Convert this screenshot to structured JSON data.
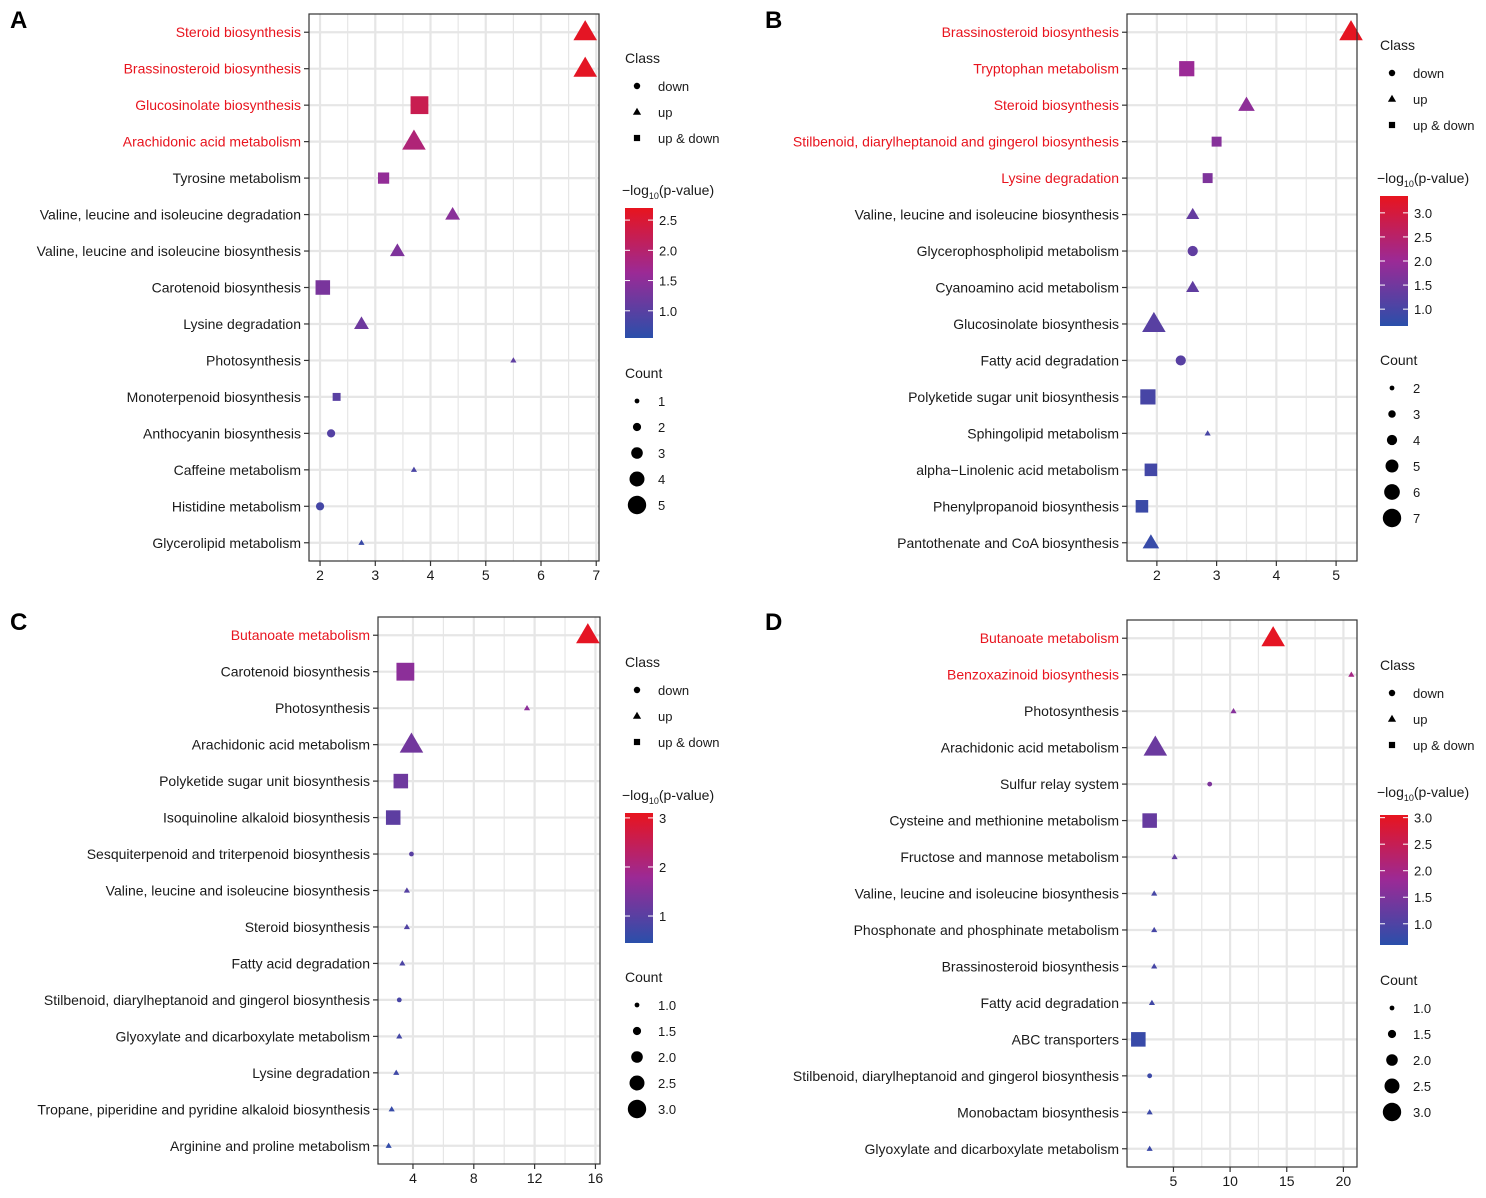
{
  "colors": {
    "low": "#2A4FAA",
    "mid": "#9B2A96",
    "high": "#E8141E",
    "highlight_label": "#E8141E",
    "grid": "#E6E6E6"
  },
  "legend": {
    "class_title": "Class",
    "class_items": [
      {
        "label": "down",
        "shape": "circle"
      },
      {
        "label": "up",
        "shape": "triangle"
      },
      {
        "label": "up & down",
        "shape": "square"
      }
    ],
    "color_title_prefix": "−log",
    "color_title_sub": "10",
    "color_title_suffix": "(p-value)",
    "count_title": "Count"
  },
  "chart_data": [
    {
      "panel": "A",
      "type": "scatter",
      "xlim": [
        1.8,
        7.05
      ],
      "xticks": [
        "2",
        "3",
        "4",
        "5",
        "6",
        "7"
      ],
      "color_range": [
        0.55,
        2.7
      ],
      "color_ticks": [
        "1.0",
        "1.5",
        "2.0",
        "2.5"
      ],
      "size_range": [
        1,
        5
      ],
      "count_ticks": [
        "1",
        "2",
        "3",
        "4",
        "5"
      ],
      "points": [
        {
          "pathway": "Steroid biosynthesis",
          "x": 6.8,
          "class": "up",
          "count": 5,
          "logp": 2.65,
          "highlight": true
        },
        {
          "pathway": "Brassinosteroid biosynthesis",
          "x": 6.8,
          "class": "up",
          "count": 5,
          "logp": 2.65,
          "highlight": true
        },
        {
          "pathway": "Glucosinolate biosynthesis",
          "x": 3.8,
          "class": "up & down",
          "count": 5,
          "logp": 2.25,
          "highlight": true
        },
        {
          "pathway": "Arachidonic acid metabolism",
          "x": 3.7,
          "class": "up",
          "count": 5,
          "logp": 1.9,
          "highlight": true
        },
        {
          "pathway": "Tyrosine metabolism",
          "x": 3.15,
          "class": "up & down",
          "count": 3,
          "logp": 1.55,
          "highlight": false
        },
        {
          "pathway": "Valine, leucine and isoleucine degradation",
          "x": 4.4,
          "class": "up",
          "count": 3,
          "logp": 1.45,
          "highlight": false
        },
        {
          "pathway": "Valine, leucine and isoleucine biosynthesis",
          "x": 3.4,
          "class": "up",
          "count": 3,
          "logp": 1.35,
          "highlight": false
        },
        {
          "pathway": "Carotenoid biosynthesis",
          "x": 2.05,
          "class": "up & down",
          "count": 4,
          "logp": 1.3,
          "highlight": false
        },
        {
          "pathway": "Lysine degradation",
          "x": 2.75,
          "class": "up",
          "count": 3,
          "logp": 1.2,
          "highlight": false
        },
        {
          "pathway": "Photosynthesis",
          "x": 5.5,
          "class": "up",
          "count": 1,
          "logp": 1.05,
          "highlight": false
        },
        {
          "pathway": "Monoterpenoid biosynthesis",
          "x": 2.3,
          "class": "up & down",
          "count": 2,
          "logp": 1.0,
          "highlight": false
        },
        {
          "pathway": "Anthocyanin biosynthesis",
          "x": 2.2,
          "class": "down",
          "count": 2,
          "logp": 0.95,
          "highlight": false
        },
        {
          "pathway": "Caffeine metabolism",
          "x": 3.7,
          "class": "up",
          "count": 1,
          "logp": 0.85,
          "highlight": false
        },
        {
          "pathway": "Histidine metabolism",
          "x": 2.0,
          "class": "down",
          "count": 2,
          "logp": 0.8,
          "highlight": false
        },
        {
          "pathway": "Glycerolipid metabolism",
          "x": 2.75,
          "class": "up",
          "count": 1,
          "logp": 0.7,
          "highlight": false
        }
      ]
    },
    {
      "panel": "B",
      "type": "scatter",
      "xlim": [
        1.5,
        5.35
      ],
      "xticks": [
        "2",
        "3",
        "4",
        "5"
      ],
      "color_range": [
        0.65,
        3.35
      ],
      "color_ticks": [
        "1.0",
        "1.5",
        "2.0",
        "2.5",
        "3.0"
      ],
      "size_range": [
        2,
        7
      ],
      "count_ticks": [
        "2",
        "3",
        "4",
        "5",
        "6",
        "7"
      ],
      "points": [
        {
          "pathway": "Brassinosteroid biosynthesis",
          "x": 5.25,
          "class": "up",
          "count": 7,
          "logp": 3.3,
          "highlight": true
        },
        {
          "pathway": "Tryptophan metabolism",
          "x": 2.5,
          "class": "up & down",
          "count": 6,
          "logp": 2.0,
          "highlight": true
        },
        {
          "pathway": "Steroid biosynthesis",
          "x": 3.5,
          "class": "up",
          "count": 5,
          "logp": 1.85,
          "highlight": true
        },
        {
          "pathway": "Stilbenoid, diarylheptanoid and gingerol biosynthesis",
          "x": 3.0,
          "class": "up & down",
          "count": 4,
          "logp": 1.75,
          "highlight": true
        },
        {
          "pathway": "Lysine degradation",
          "x": 2.85,
          "class": "up & down",
          "count": 4,
          "logp": 1.65,
          "highlight": true
        },
        {
          "pathway": "Valine, leucine and isoleucine biosynthesis",
          "x": 2.6,
          "class": "up",
          "count": 4,
          "logp": 1.35,
          "highlight": false
        },
        {
          "pathway": "Glycerophospholipid metabolism",
          "x": 2.6,
          "class": "down",
          "count": 4,
          "logp": 1.3,
          "highlight": false
        },
        {
          "pathway": "Cyanoamino acid metabolism",
          "x": 2.6,
          "class": "up",
          "count": 4,
          "logp": 1.3,
          "highlight": false
        },
        {
          "pathway": "Glucosinolate biosynthesis",
          "x": 1.95,
          "class": "up",
          "count": 7,
          "logp": 1.2,
          "highlight": false
        },
        {
          "pathway": "Fatty acid degradation",
          "x": 2.4,
          "class": "down",
          "count": 4,
          "logp": 1.2,
          "highlight": false
        },
        {
          "pathway": "Polyketide sugar unit biosynthesis",
          "x": 1.85,
          "class": "up & down",
          "count": 6,
          "logp": 1.0,
          "highlight": false
        },
        {
          "pathway": "Sphingolipid metabolism",
          "x": 2.85,
          "class": "up",
          "count": 2,
          "logp": 1.0,
          "highlight": false
        },
        {
          "pathway": "alpha−Linolenic acid metabolism",
          "x": 1.9,
          "class": "up & down",
          "count": 5,
          "logp": 0.95,
          "highlight": false
        },
        {
          "pathway": "Phenylpropanoid biosynthesis",
          "x": 1.75,
          "class": "up & down",
          "count": 5,
          "logp": 0.85,
          "highlight": false
        },
        {
          "pathway": "Pantothenate and CoA biosynthesis",
          "x": 1.9,
          "class": "up",
          "count": 5,
          "logp": 0.8,
          "highlight": false
        }
      ]
    },
    {
      "panel": "C",
      "type": "scatter",
      "xlim": [
        1.7,
        16.3
      ],
      "xticks": [
        "4",
        "8",
        "12",
        "16"
      ],
      "color_range": [
        0.45,
        3.1
      ],
      "color_ticks": [
        "1",
        "2",
        "3"
      ],
      "size_range": [
        1,
        3
      ],
      "count_ticks": [
        "1.0",
        "1.5",
        "2.0",
        "2.5",
        "3.0"
      ],
      "points": [
        {
          "pathway": "Butanoate metabolism",
          "x": 15.5,
          "class": "up",
          "count": 3,
          "logp": 3.05,
          "highlight": true
        },
        {
          "pathway": "Carotenoid biosynthesis",
          "x": 3.5,
          "class": "up & down",
          "count": 3,
          "logp": 1.6,
          "highlight": false
        },
        {
          "pathway": "Photosynthesis",
          "x": 11.5,
          "class": "up",
          "count": 1,
          "logp": 1.6,
          "highlight": false
        },
        {
          "pathway": "Arachidonic acid metabolism",
          "x": 3.9,
          "class": "up",
          "count": 3,
          "logp": 1.3,
          "highlight": false
        },
        {
          "pathway": "Polyketide sugar unit biosynthesis",
          "x": 3.2,
          "class": "up & down",
          "count": 2.5,
          "logp": 1.25,
          "highlight": false
        },
        {
          "pathway": "Isoquinoline alkaloid biosynthesis",
          "x": 2.7,
          "class": "up & down",
          "count": 2.5,
          "logp": 1.05,
          "highlight": false
        },
        {
          "pathway": "Sesquiterpenoid and triterpenoid biosynthesis",
          "x": 3.9,
          "class": "down",
          "count": 1,
          "logp": 1.0,
          "highlight": false
        },
        {
          "pathway": "Valine, leucine and isoleucine biosynthesis",
          "x": 3.6,
          "class": "up",
          "count": 1,
          "logp": 0.95,
          "highlight": false
        },
        {
          "pathway": "Steroid biosynthesis",
          "x": 3.6,
          "class": "up",
          "count": 1,
          "logp": 0.9,
          "highlight": false
        },
        {
          "pathway": "Fatty acid degradation",
          "x": 3.3,
          "class": "up",
          "count": 1,
          "logp": 0.85,
          "highlight": false
        },
        {
          "pathway": "Stilbenoid, diarylheptanoid and gingerol biosynthesis",
          "x": 3.1,
          "class": "down",
          "count": 1,
          "logp": 0.8,
          "highlight": false
        },
        {
          "pathway": "Glyoxylate and dicarboxylate metabolism",
          "x": 3.1,
          "class": "up",
          "count": 1,
          "logp": 0.75,
          "highlight": false
        },
        {
          "pathway": "Lysine degradation",
          "x": 2.9,
          "class": "up",
          "count": 1,
          "logp": 0.7,
          "highlight": false
        },
        {
          "pathway": "Tropane, piperidine and pyridine alkaloid biosynthesis",
          "x": 2.6,
          "class": "up",
          "count": 1,
          "logp": 0.6,
          "highlight": false
        },
        {
          "pathway": "Arginine and proline metabolism",
          "x": 2.4,
          "class": "up",
          "count": 1,
          "logp": 0.55,
          "highlight": false
        }
      ]
    },
    {
      "panel": "D",
      "type": "scatter",
      "xlim": [
        0.9,
        21.2
      ],
      "xticks": [
        "5",
        "10",
        "15",
        "20"
      ],
      "color_range": [
        0.6,
        3.05
      ],
      "color_ticks": [
        "1.0",
        "1.5",
        "2.0",
        "2.5",
        "3.0"
      ],
      "size_range": [
        1,
        3
      ],
      "count_ticks": [
        "1.0",
        "1.5",
        "2.0",
        "2.5",
        "3.0"
      ],
      "points": [
        {
          "pathway": "Butanoate metabolism",
          "x": 13.8,
          "class": "up",
          "count": 3,
          "logp": 3.0,
          "highlight": true
        },
        {
          "pathway": "Benzoxazinoid biosynthesis",
          "x": 20.7,
          "class": "up",
          "count": 1,
          "logp": 2.0,
          "highlight": true
        },
        {
          "pathway": "Photosynthesis",
          "x": 10.3,
          "class": "up",
          "count": 1,
          "logp": 1.6,
          "highlight": false
        },
        {
          "pathway": "Arachidonic acid metabolism",
          "x": 3.4,
          "class": "up",
          "count": 3,
          "logp": 1.3,
          "highlight": false
        },
        {
          "pathway": "Sulfur relay system",
          "x": 8.2,
          "class": "down",
          "count": 1,
          "logp": 1.5,
          "highlight": false
        },
        {
          "pathway": "Cysteine and methionine metabolism",
          "x": 2.9,
          "class": "up & down",
          "count": 2.5,
          "logp": 1.25,
          "highlight": false
        },
        {
          "pathway": "Fructose and mannose metabolism",
          "x": 5.1,
          "class": "up",
          "count": 1,
          "logp": 1.2,
          "highlight": false
        },
        {
          "pathway": "Valine, leucine and isoleucine biosynthesis",
          "x": 3.3,
          "class": "up",
          "count": 1,
          "logp": 0.9,
          "highlight": false
        },
        {
          "pathway": "Phosphonate and phosphinate metabolism",
          "x": 3.3,
          "class": "up",
          "count": 1,
          "logp": 0.9,
          "highlight": false
        },
        {
          "pathway": "Brassinosteroid biosynthesis",
          "x": 3.3,
          "class": "up",
          "count": 1,
          "logp": 0.9,
          "highlight": false
        },
        {
          "pathway": "Fatty acid degradation",
          "x": 3.1,
          "class": "up",
          "count": 1,
          "logp": 0.85,
          "highlight": false
        },
        {
          "pathway": "ABC transporters",
          "x": 1.9,
          "class": "up & down",
          "count": 2.5,
          "logp": 0.75,
          "highlight": false
        },
        {
          "pathway": "Stilbenoid, diarylheptanoid and gingerol biosynthesis",
          "x": 2.9,
          "class": "down",
          "count": 1,
          "logp": 0.8,
          "highlight": false
        },
        {
          "pathway": "Monobactam biosynthesis",
          "x": 2.9,
          "class": "up",
          "count": 1,
          "logp": 0.8,
          "highlight": false
        },
        {
          "pathway": "Glyoxylate and dicarboxylate metabolism",
          "x": 2.9,
          "class": "up",
          "count": 1,
          "logp": 0.8,
          "highlight": false
        }
      ]
    }
  ]
}
